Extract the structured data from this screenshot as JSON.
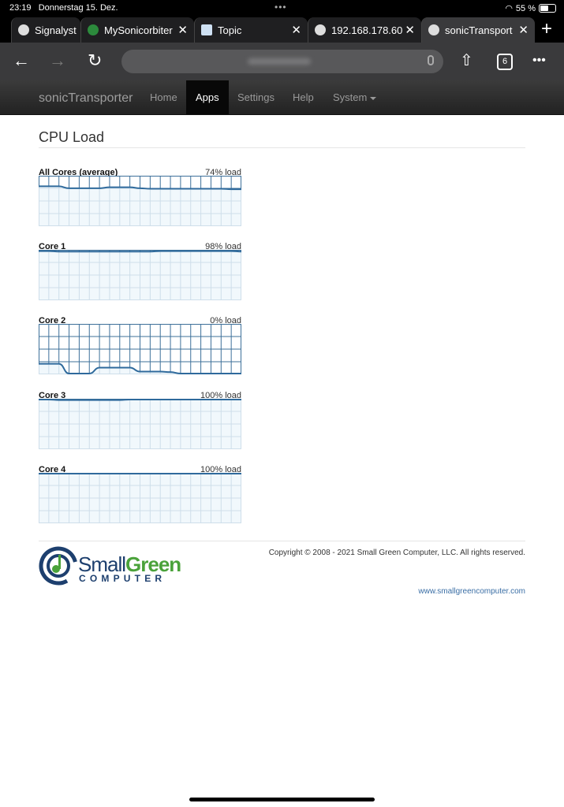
{
  "status_bar": {
    "time": "23:19",
    "date": "Donnerstag 15. Dez.",
    "battery": "55 %",
    "battery_level": 55
  },
  "tabs": [
    {
      "label": "Signalyst",
      "active": false,
      "closable": false
    },
    {
      "label": "MySonicorbiter",
      "active": false,
      "closable": true
    },
    {
      "label": "Topic",
      "active": false,
      "closable": true
    },
    {
      "label": "192.168.178.60",
      "active": false,
      "closable": true
    },
    {
      "label": "sonicTransporter",
      "active": true,
      "closable": true
    }
  ],
  "toolbar": {
    "tab_count": "6"
  },
  "navbar": {
    "brand": "sonicTransporter",
    "items": [
      {
        "label": "Home"
      },
      {
        "label": "Apps",
        "active": true
      },
      {
        "label": "Settings"
      },
      {
        "label": "Help"
      },
      {
        "label": "System",
        "dropdown": true
      }
    ]
  },
  "page": {
    "title": "CPU Load"
  },
  "chart_data": [
    {
      "type": "area",
      "title": "All Cores (average)",
      "value_label": "74% load",
      "ylim": [
        0,
        100
      ],
      "grid": true,
      "values": [
        80,
        80,
        80,
        76,
        76,
        76,
        76,
        78,
        78,
        78,
        76,
        75,
        75,
        75,
        75,
        75,
        75,
        75,
        75,
        74,
        74
      ]
    },
    {
      "type": "area",
      "title": "Core 1",
      "value_label": "98% load",
      "ylim": [
        0,
        100
      ],
      "grid": true,
      "values": [
        99,
        99,
        98,
        98,
        98,
        98,
        98,
        98,
        98,
        98,
        98,
        98,
        99,
        99,
        99,
        99,
        99,
        99,
        99,
        99,
        98
      ]
    },
    {
      "type": "area",
      "title": "Core 2",
      "value_label": "0% load",
      "ylim": [
        0,
        100
      ],
      "grid": true,
      "values": [
        20,
        20,
        20,
        0,
        0,
        0,
        12,
        12,
        12,
        12,
        4,
        4,
        4,
        3,
        0,
        0,
        0,
        0,
        0,
        0,
        0
      ]
    },
    {
      "type": "area",
      "title": "Core 3",
      "value_label": "100% load",
      "ylim": [
        0,
        100
      ],
      "grid": true,
      "values": [
        100,
        100,
        99,
        99,
        99,
        99,
        99,
        99,
        99,
        100,
        100,
        100,
        100,
        100,
        100,
        100,
        100,
        100,
        100,
        100,
        100
      ]
    },
    {
      "type": "area",
      "title": "Core 4",
      "value_label": "100% load",
      "ylim": [
        0,
        100
      ],
      "grid": true,
      "values": [
        100,
        100,
        100,
        100,
        100,
        100,
        100,
        100,
        100,
        100,
        100,
        100,
        100,
        100,
        100,
        100,
        100,
        100,
        100,
        100,
        100
      ]
    }
  ],
  "footer": {
    "logo_text": "SmallGreen COMPUTER",
    "copyright": "Copyright © 2008 - 2021 Small Green Computer, LLC. All rights reserved.",
    "website": "www.smallgreencomputer.com"
  },
  "colors": {
    "line": "#2f6a9c",
    "grid": "#3d709a",
    "fill": "#eef6fb",
    "green": "#4aa23a",
    "navy": "#1d3f6e"
  }
}
